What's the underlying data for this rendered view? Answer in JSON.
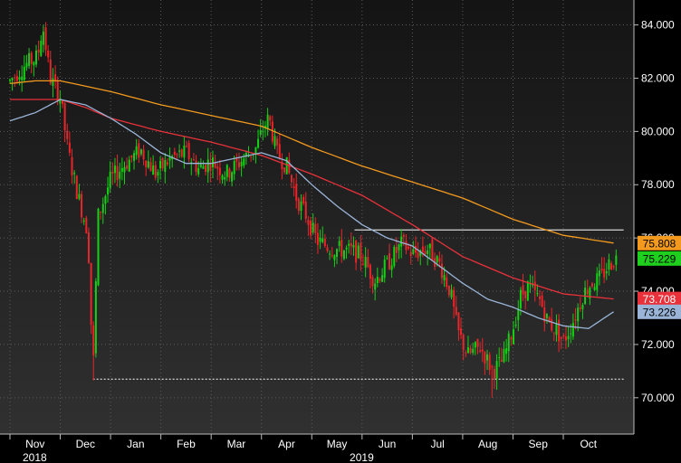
{
  "chart_data": {
    "type": "candlestick",
    "ylim": [
      68.5,
      84.8
    ],
    "y_ticks": [
      "70.000",
      "72.000",
      "74.000",
      "76.000",
      "78.000",
      "80.000",
      "82.000",
      "84.000"
    ],
    "x_ticks": [
      {
        "label": "Nov",
        "month": 0
      },
      {
        "label": "Dec",
        "month": 1
      },
      {
        "label": "Jan",
        "month": 2
      },
      {
        "label": "Feb",
        "month": 3
      },
      {
        "label": "Mar",
        "month": 4
      },
      {
        "label": "Apr",
        "month": 5
      },
      {
        "label": "May",
        "month": 6
      },
      {
        "label": "Jun",
        "month": 7
      },
      {
        "label": "Jul",
        "month": 8
      },
      {
        "label": "Aug",
        "month": 9
      },
      {
        "label": "Sep",
        "month": 10
      },
      {
        "label": "Oct",
        "month": 11
      }
    ],
    "year_labels": [
      {
        "label": "2018",
        "month": 0
      },
      {
        "label": "2019",
        "month": 6.5
      }
    ],
    "price_path": [
      [
        0,
        81.9
      ],
      [
        0.3,
        82.5
      ],
      [
        0.55,
        82.8
      ],
      [
        0.65,
        84.0
      ],
      [
        0.8,
        82.0
      ],
      [
        1.0,
        81.3
      ],
      [
        1.15,
        79.3
      ],
      [
        1.35,
        77.6
      ],
      [
        1.55,
        76.2
      ],
      [
        1.65,
        70.8
      ],
      [
        1.75,
        76.8
      ],
      [
        2.0,
        78.2
      ],
      [
        2.3,
        78.8
      ],
      [
        2.6,
        79.3
      ],
      [
        2.9,
        78.4
      ],
      [
        3.2,
        79.0
      ],
      [
        3.5,
        79.2
      ],
      [
        3.75,
        78.6
      ],
      [
        4.0,
        78.9
      ],
      [
        4.3,
        78.4
      ],
      [
        4.6,
        78.9
      ],
      [
        4.9,
        79.4
      ],
      [
        5.05,
        80.2
      ],
      [
        5.15,
        80.5
      ],
      [
        5.3,
        79.2
      ],
      [
        5.5,
        78.7
      ],
      [
        5.7,
        77.5
      ],
      [
        5.9,
        76.8
      ],
      [
        6.1,
        75.9
      ],
      [
        6.4,
        75.6
      ],
      [
        6.8,
        75.5
      ],
      [
        7.0,
        75.3
      ],
      [
        7.25,
        74.4
      ],
      [
        7.5,
        75.0
      ],
      [
        7.8,
        75.8
      ],
      [
        8.0,
        75.4
      ],
      [
        8.3,
        75.6
      ],
      [
        8.55,
        75.0
      ],
      [
        8.75,
        74.0
      ],
      [
        8.9,
        72.5
      ],
      [
        9.1,
        71.6
      ],
      [
        9.35,
        71.9
      ],
      [
        9.6,
        71.0
      ],
      [
        9.8,
        71.4
      ],
      [
        10.0,
        72.6
      ],
      [
        10.15,
        73.8
      ],
      [
        10.3,
        74.2
      ],
      [
        10.55,
        73.6
      ],
      [
        10.7,
        72.8
      ],
      [
        10.85,
        72.6
      ],
      [
        11.0,
        72.1
      ],
      [
        11.2,
        72.9
      ],
      [
        11.4,
        73.9
      ],
      [
        11.55,
        74.3
      ],
      [
        11.75,
        74.5
      ],
      [
        11.9,
        75.0
      ],
      [
        12.05,
        75.229
      ]
    ],
    "series": [
      {
        "name": "",
        "color": "#f39a1e",
        "points": [
          [
            0,
            81.8
          ],
          [
            0.5,
            81.9
          ],
          [
            1.0,
            81.9
          ],
          [
            2.0,
            81.5
          ],
          [
            3.0,
            81.0
          ],
          [
            4.0,
            80.6
          ],
          [
            5.0,
            80.2
          ],
          [
            6.0,
            79.4
          ],
          [
            7.0,
            78.7
          ],
          [
            8.0,
            78.1
          ],
          [
            9.0,
            77.5
          ],
          [
            10.0,
            76.7
          ],
          [
            11.0,
            76.1
          ],
          [
            12.0,
            75.808
          ]
        ]
      },
      {
        "name": "",
        "color": "#e8313a",
        "points": [
          [
            0,
            81.2
          ],
          [
            1.0,
            81.2
          ],
          [
            1.5,
            80.9
          ],
          [
            2.0,
            80.5
          ],
          [
            3.0,
            80.0
          ],
          [
            4.0,
            79.6
          ],
          [
            5.0,
            79.1
          ],
          [
            6.0,
            78.4
          ],
          [
            7.0,
            77.6
          ],
          [
            8.0,
            76.5
          ],
          [
            9.0,
            75.3
          ],
          [
            10.0,
            74.5
          ],
          [
            11.0,
            73.9
          ],
          [
            12.0,
            73.708
          ]
        ]
      },
      {
        "name": "",
        "color": "#9ab4d8",
        "points": [
          [
            0,
            80.4
          ],
          [
            0.5,
            80.7
          ],
          [
            1.0,
            81.2
          ],
          [
            1.5,
            81.0
          ],
          [
            2.0,
            80.5
          ],
          [
            2.5,
            79.9
          ],
          [
            3.0,
            79.2
          ],
          [
            3.5,
            78.8
          ],
          [
            4.0,
            78.8
          ],
          [
            4.5,
            79.0
          ],
          [
            5.0,
            79.2
          ],
          [
            5.5,
            78.9
          ],
          [
            6.0,
            78.0
          ],
          [
            6.5,
            77.2
          ],
          [
            7.0,
            76.5
          ],
          [
            7.5,
            76.0
          ],
          [
            8.0,
            75.7
          ],
          [
            8.5,
            75.0
          ],
          [
            9.0,
            74.3
          ],
          [
            9.5,
            73.7
          ],
          [
            10.0,
            73.4
          ],
          [
            10.5,
            73.0
          ],
          [
            11.0,
            72.7
          ],
          [
            11.5,
            72.6
          ],
          [
            12.0,
            73.226
          ]
        ]
      }
    ],
    "hlines": [
      {
        "y": 76.3,
        "x_from": 6.85,
        "x_to": 12.2,
        "color": "#ffffff",
        "dashed": false
      },
      {
        "y": 70.7,
        "x_from": 1.65,
        "x_to": 12.2,
        "color": "#ffffff",
        "dashed": true
      }
    ],
    "price_labels": [
      {
        "value": "75.808",
        "y": 75.808,
        "bg": "#f39a1e",
        "fg": "#000000"
      },
      {
        "value": "75.229",
        "y": 75.229,
        "bg": "#1ecf1e",
        "fg": "#000000"
      },
      {
        "value": "73.708",
        "y": 73.708,
        "bg": "#e8313a",
        "fg": "#ffffff"
      },
      {
        "value": "73.226",
        "y": 73.226,
        "bg": "#9ab4d8",
        "fg": "#000000"
      }
    ],
    "colors": {
      "up": "#16d016",
      "down": "#e8262a",
      "grid": "#5a5a5a",
      "text": "#ffffff"
    }
  }
}
